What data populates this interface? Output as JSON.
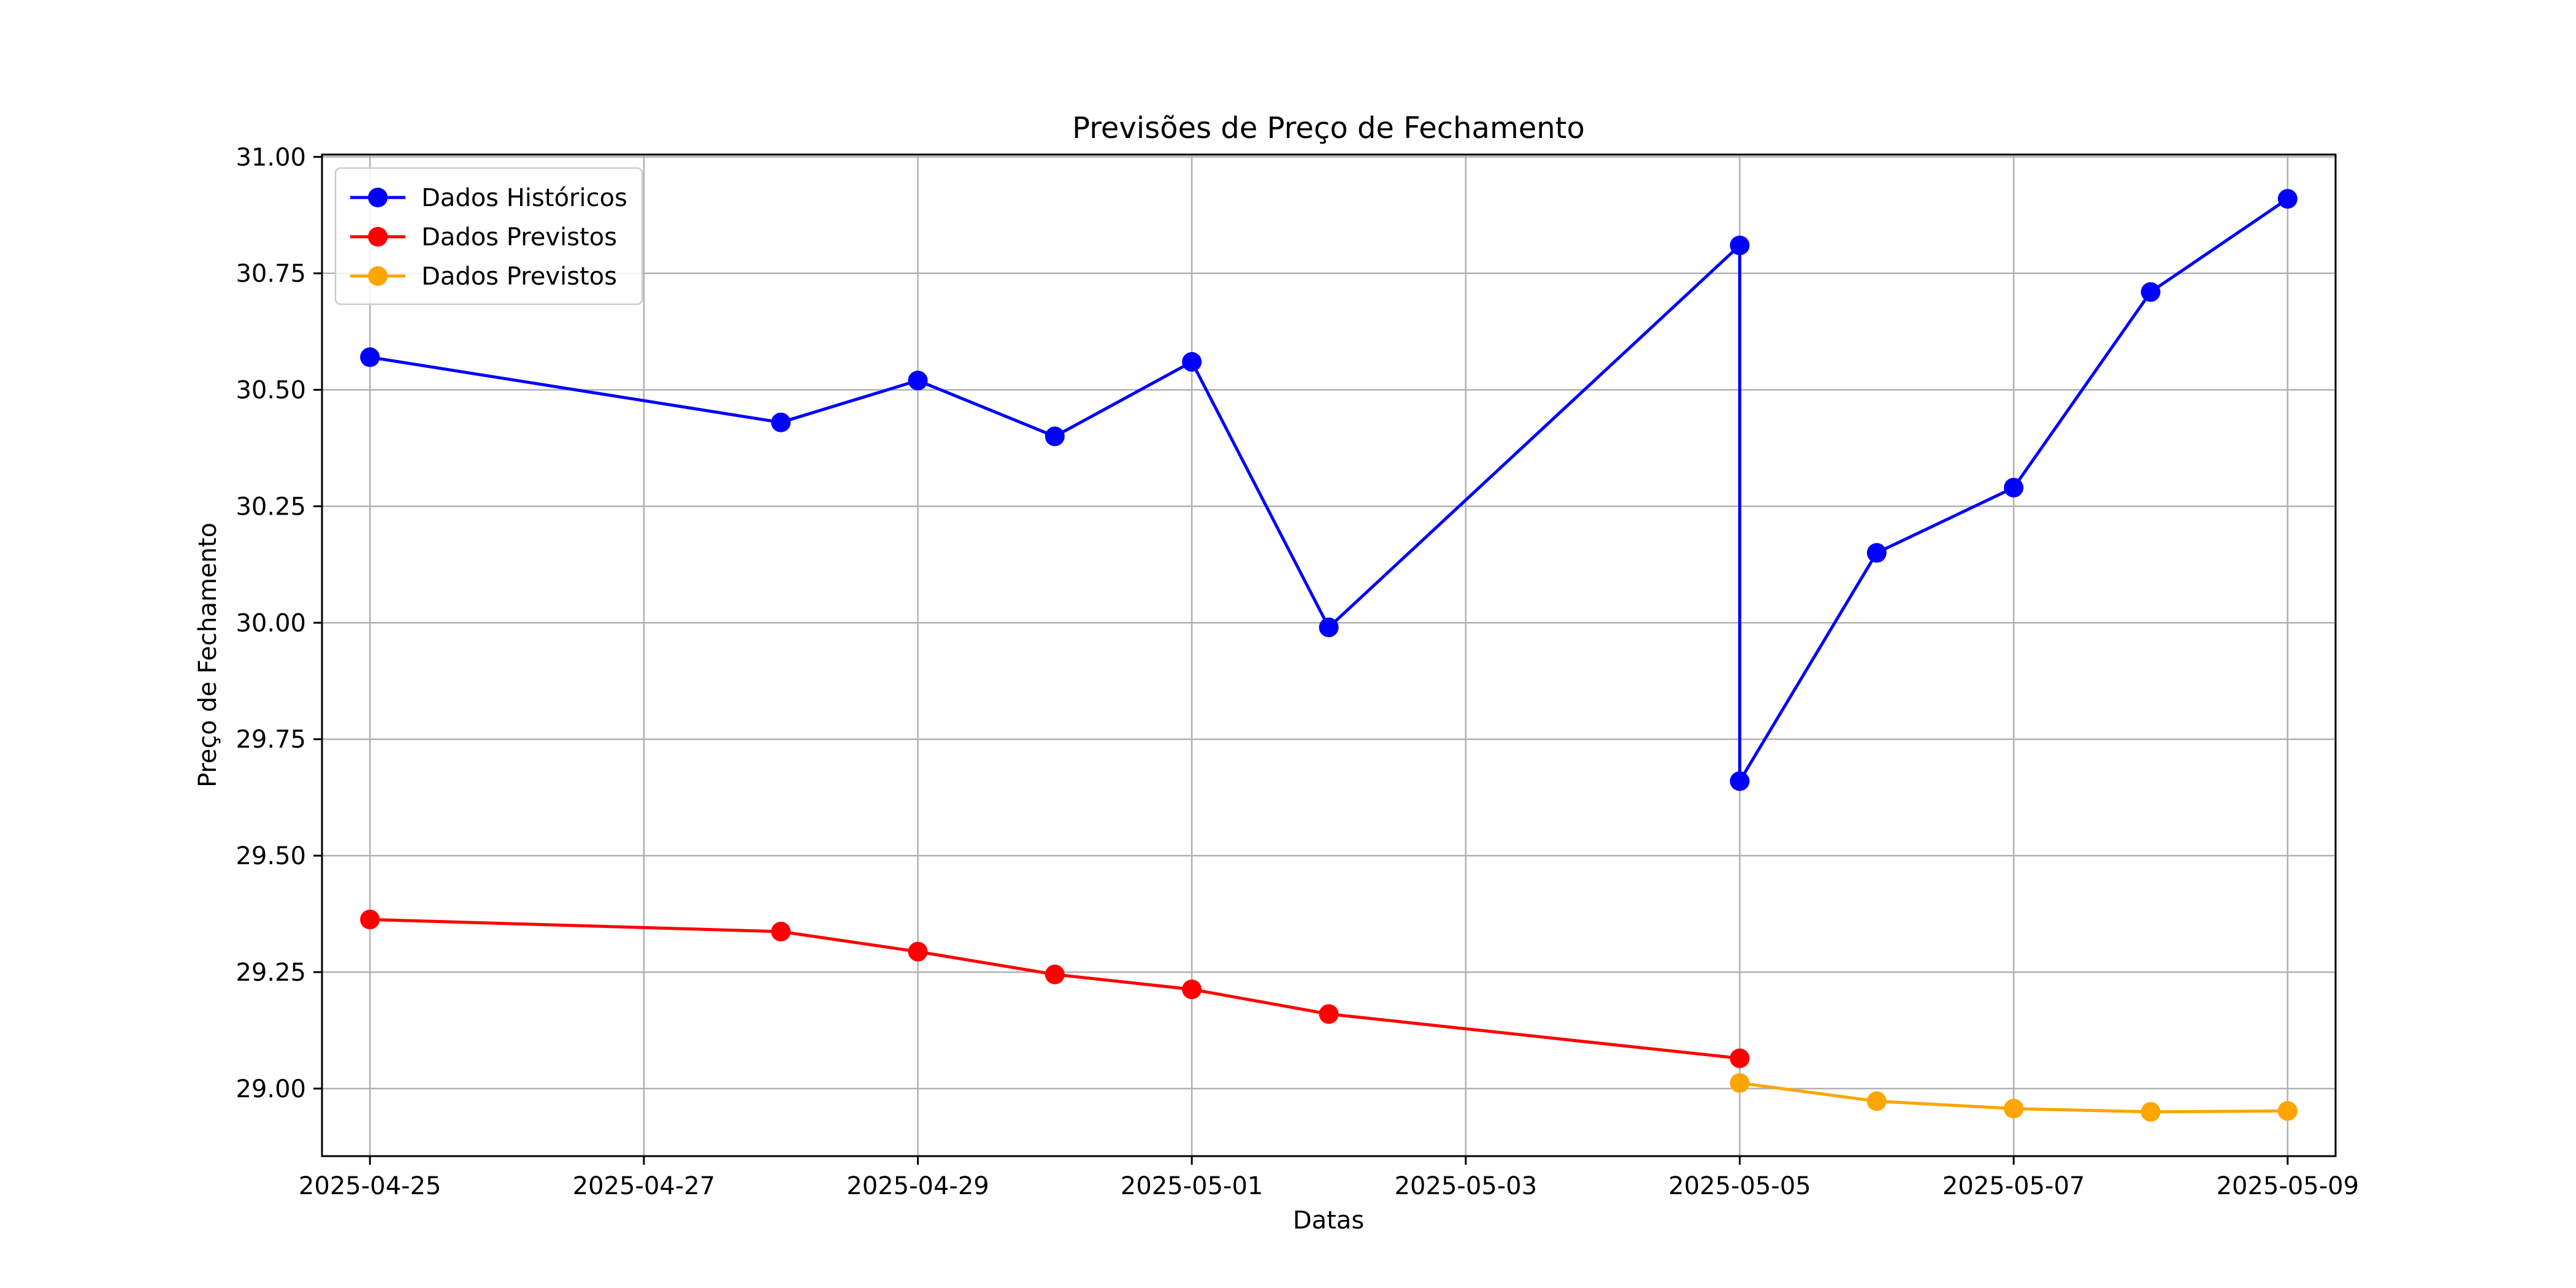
{
  "chart_data": {
    "type": "line",
    "title": "Previsões de Preço de Fechamento",
    "xlabel": "Datas",
    "ylabel": "Preço de Fechamento",
    "xlim": [
      "2025-04-24",
      "2025-05-09"
    ],
    "ylim": [
      28.855,
      31.005
    ],
    "x_ticks": [
      "2025-04-25",
      "2025-04-27",
      "2025-04-29",
      "2025-05-01",
      "2025-05-03",
      "2025-05-05",
      "2025-05-07",
      "2025-05-09"
    ],
    "y_ticks": [
      "29.00",
      "29.25",
      "29.50",
      "29.75",
      "30.00",
      "30.25",
      "30.50",
      "30.75",
      "31.00"
    ],
    "grid": true,
    "legend_position": "top-left",
    "series": [
      {
        "name": "Dados Históricos",
        "color": "#0000ff",
        "x": [
          "2025-04-25",
          "2025-04-28",
          "2025-04-29",
          "2025-04-30",
          "2025-05-01",
          "2025-05-02",
          "2025-05-05",
          "2025-05-05",
          "2025-05-06",
          "2025-05-07",
          "2025-05-08",
          "2025-05-09"
        ],
        "y": [
          30.57,
          30.43,
          30.52,
          30.4,
          30.56,
          29.99,
          30.81,
          29.66,
          30.15,
          30.29,
          30.71,
          30.91
        ]
      },
      {
        "name": "Dados Previstos",
        "color": "#ff0000",
        "x": [
          "2025-04-25",
          "2025-04-28",
          "2025-04-29",
          "2025-04-30",
          "2025-05-01",
          "2025-05-02",
          "2025-05-05"
        ],
        "y": [
          29.363,
          29.337,
          29.294,
          29.245,
          29.213,
          29.16,
          29.065
        ]
      },
      {
        "name": "Dados Previstos",
        "color": "#ffa500",
        "x": [
          "2025-05-05",
          "2025-05-06",
          "2025-05-07",
          "2025-05-08",
          "2025-05-09"
        ],
        "y": [
          29.012,
          28.973,
          28.957,
          28.95,
          28.952
        ]
      }
    ]
  }
}
